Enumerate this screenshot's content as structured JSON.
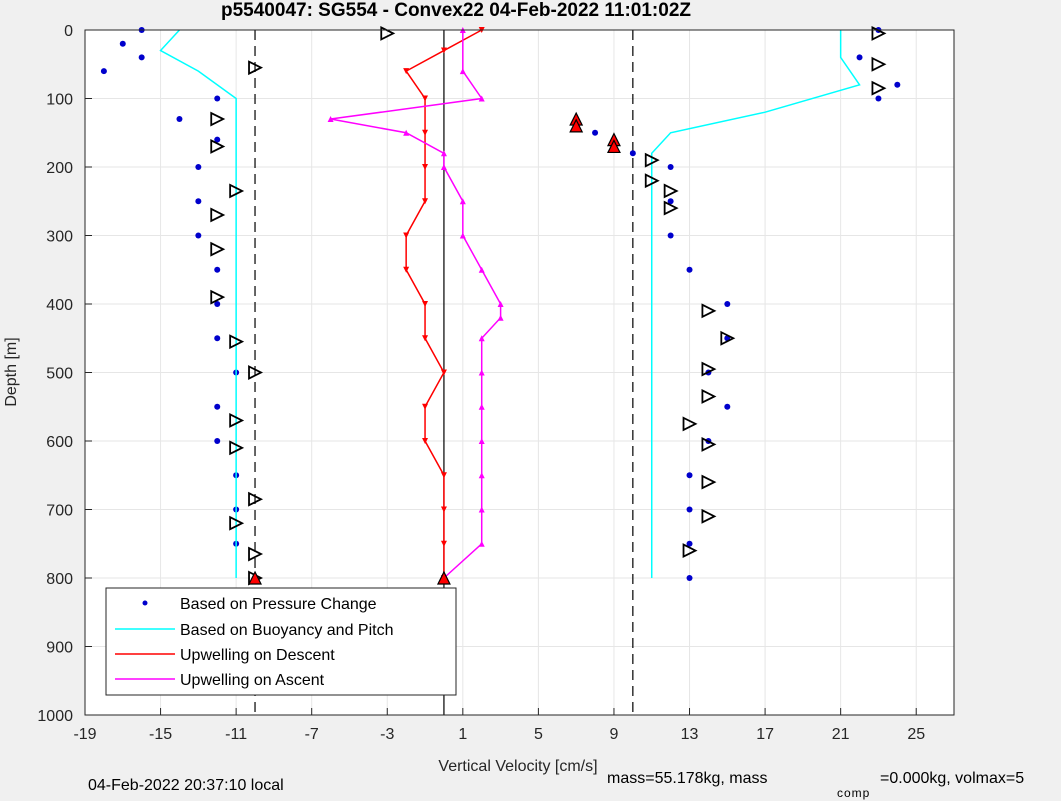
{
  "chart_data": {
    "type": "scatter",
    "title": "p5540047: SG554 - Convex22 04-Feb-2022 11:01:02Z",
    "xlabel": "Vertical Velocity [cm/s]",
    "ylabel": "Depth [m]",
    "xlim": [
      -19,
      27
    ],
    "ylim": [
      1000,
      0
    ],
    "y_reversed": true,
    "grid": true,
    "xticks": [
      -19,
      -15,
      -11,
      -7,
      -3,
      1,
      5,
      9,
      13,
      17,
      21,
      25
    ],
    "yticks": [
      0,
      100,
      200,
      300,
      400,
      500,
      600,
      700,
      800,
      900,
      1000
    ],
    "legend_position": "bottom-left",
    "reference_lines": {
      "dashed_x": [
        -10,
        10
      ],
      "solid_x": [
        0
      ]
    },
    "series": [
      {
        "name": "Based on Pressure Change",
        "color": "#0000cc",
        "style": "dots",
        "depth": [
          0,
          20,
          40,
          60,
          100,
          130,
          160,
          200,
          250,
          300,
          350,
          400,
          450,
          500,
          550,
          600,
          650,
          700,
          750,
          800,
          0,
          40,
          80,
          100,
          130,
          150,
          180,
          200,
          250,
          300,
          350,
          400,
          450,
          500,
          550,
          600,
          650,
          700,
          750,
          800
        ],
        "velocity": [
          -16,
          -17,
          -16,
          -18,
          -12,
          -14,
          -12,
          -13,
          -13,
          -13,
          -12,
          -12,
          -12,
          -11,
          -12,
          -12,
          -11,
          -11,
          -11,
          -10,
          23,
          22,
          24,
          23,
          7,
          8,
          10,
          12,
          12,
          12,
          13,
          15,
          15,
          14,
          15,
          14,
          13,
          13,
          13,
          13
        ]
      },
      {
        "name": "Based on Buoyancy and Pitch",
        "color": "#00ffff",
        "style": "line",
        "depth": [
          0,
          30,
          60,
          100,
          130,
          160,
          200,
          250,
          300,
          350,
          400,
          450,
          500,
          550,
          600,
          650,
          700,
          750,
          800,
          0,
          40,
          80,
          120,
          150,
          180,
          200,
          250,
          300,
          350,
          400,
          450,
          500,
          550,
          600,
          650,
          700,
          750,
          800
        ],
        "velocity": [
          -14,
          -15,
          -13,
          -11,
          -11,
          -11,
          -11,
          -11,
          -11,
          -11,
          -11,
          -11,
          -11,
          -11,
          -11,
          -11,
          -11,
          -11,
          -11,
          21,
          21,
          22,
          17,
          12,
          11,
          11,
          11,
          11,
          11,
          11,
          11,
          11,
          11,
          11,
          11,
          11,
          11,
          11
        ]
      },
      {
        "name": "Upwelling on Descent",
        "color": "#ff0000",
        "style": "line-triangle-down",
        "depth": [
          0,
          30,
          60,
          100,
          150,
          200,
          250,
          300,
          350,
          400,
          450,
          500,
          550,
          600,
          650,
          700,
          750,
          800
        ],
        "velocity": [
          2,
          0,
          -2,
          -1,
          -1,
          -1,
          -1,
          -2,
          -2,
          -1,
          -1,
          0,
          -1,
          -1,
          0,
          0,
          0,
          0
        ]
      },
      {
        "name": "Upwelling on Ascent",
        "color": "#ff00ff",
        "style": "line-triangle-up",
        "depth": [
          0,
          60,
          100,
          130,
          150,
          180,
          200,
          250,
          300,
          350,
          400,
          420,
          450,
          500,
          550,
          600,
          650,
          700,
          750,
          800
        ],
        "velocity": [
          1,
          1,
          2,
          -6,
          -2,
          0,
          0,
          1,
          1,
          2,
          3,
          3,
          2,
          2,
          2,
          2,
          2,
          2,
          2,
          0
        ]
      }
    ],
    "markers_open_triangle": {
      "depth": [
        5,
        55,
        130,
        170,
        235,
        270,
        320,
        390,
        455,
        500,
        570,
        610,
        685,
        720,
        765,
        800,
        5,
        50,
        85,
        190,
        220,
        235,
        260,
        410,
        450,
        495,
        535,
        575,
        605,
        660,
        710,
        760
      ],
      "velocity": [
        -3,
        -10,
        -12,
        -12,
        -11,
        -12,
        -12,
        -12,
        -11,
        -10,
        -11,
        -11,
        -10,
        -11,
        -10,
        -10,
        23,
        23,
        23,
        11,
        11,
        12,
        12,
        14,
        15,
        14,
        14,
        13,
        14,
        14,
        14,
        13
      ]
    },
    "markers_red_triangle": {
      "depth": [
        130,
        140,
        160,
        170,
        800,
        800
      ],
      "velocity": [
        7,
        7,
        9,
        9,
        -10,
        0
      ]
    },
    "footer": {
      "left": "04-Feb-2022 20:37:10 local",
      "mass": "mass=55.178kg, mass",
      "sub": "comp",
      "rest": "=0.000kg, volmax=5"
    }
  }
}
